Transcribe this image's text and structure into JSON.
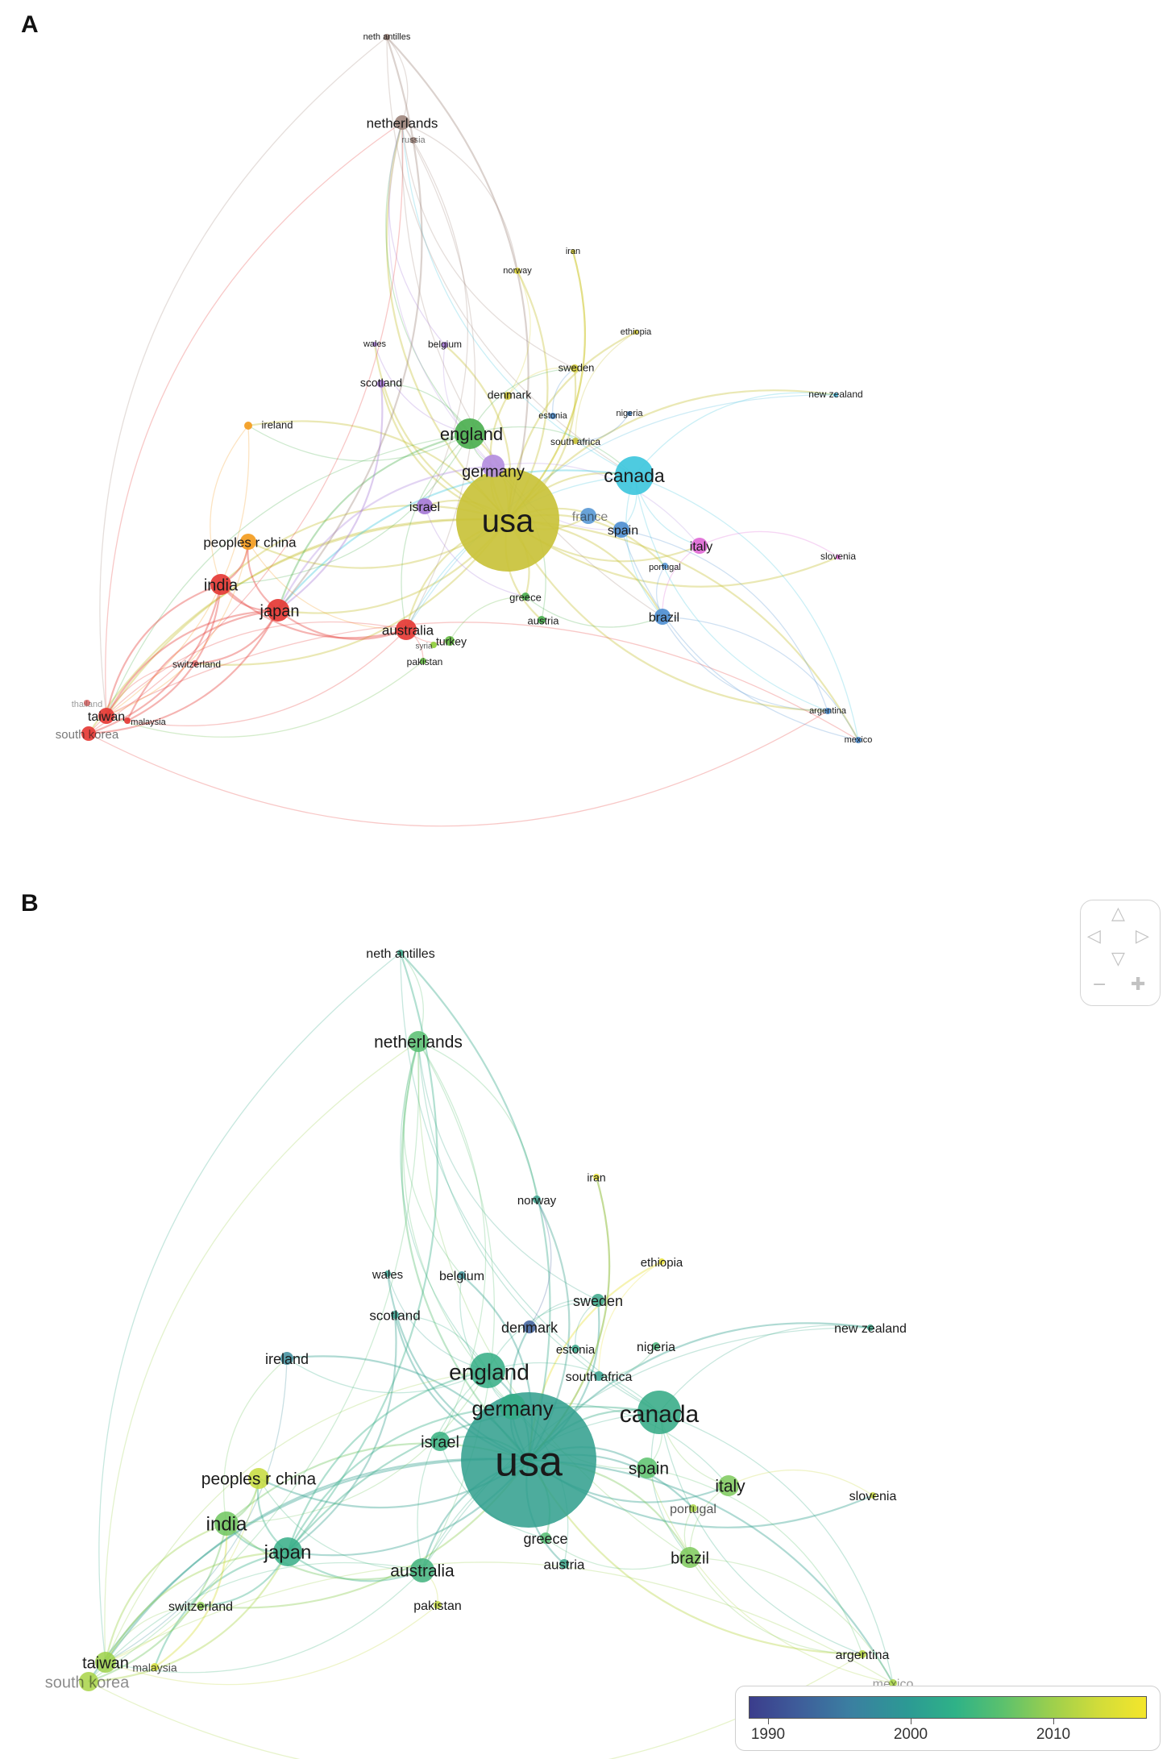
{
  "panels": [
    {
      "letter": "A",
      "nodes": [
        {
          "label": "usa",
          "color": "#c9c23a"
        },
        {
          "label": "canada",
          "color": "#3fc7dd"
        },
        {
          "label": "england",
          "color": "#4caf50"
        },
        {
          "label": "germany",
          "color": "#b48ee0"
        },
        {
          "label": "israel",
          "color": "#a67ad6"
        },
        {
          "label": "france",
          "color": "#5b9ad6"
        },
        {
          "label": "spain",
          "color": "#4f8fd1"
        },
        {
          "label": "italy",
          "color": "#e06ad6"
        },
        {
          "label": "portugal",
          "color": "#5b9ad6"
        },
        {
          "label": "brazil",
          "color": "#4f8fd1"
        },
        {
          "label": "greece",
          "color": "#4caf50"
        },
        {
          "label": "austria",
          "color": "#4caf50"
        },
        {
          "label": "turkey",
          "color": "#66bb44"
        },
        {
          "label": "syria",
          "color": "#8fce3b"
        },
        {
          "label": "pakistan",
          "color": "#66bb44"
        },
        {
          "label": "australia",
          "color": "#e53935"
        },
        {
          "label": "japan",
          "color": "#e53935"
        },
        {
          "label": "india",
          "color": "#e53935"
        },
        {
          "label": "peoples r china",
          "color": "#f39c1f"
        },
        {
          "label": "switzerland",
          "color": "#e57373"
        },
        {
          "label": "taiwan",
          "color": "#e53935"
        },
        {
          "label": "thailand",
          "color": "#e57373"
        },
        {
          "label": "malaysia",
          "color": "#e53935"
        },
        {
          "label": "south korea",
          "color": "#e53935"
        },
        {
          "label": "ireland",
          "color": "#f39c1f"
        },
        {
          "label": "scotland",
          "color": "#a67ad6"
        },
        {
          "label": "wales",
          "color": "#a67ad6"
        },
        {
          "label": "belgium",
          "color": "#a67ad6"
        },
        {
          "label": "denmark",
          "color": "#c9c23a"
        },
        {
          "label": "sweden",
          "color": "#d8cf3a"
        },
        {
          "label": "norway",
          "color": "#d8cf3a"
        },
        {
          "label": "iran",
          "color": "#d8cf3a"
        },
        {
          "label": "ethiopia",
          "color": "#c9c23a"
        },
        {
          "label": "estonia",
          "color": "#4f8fd1"
        },
        {
          "label": "nigeria",
          "color": "#4f8fd1"
        },
        {
          "label": "south africa",
          "color": "#c9c23a"
        },
        {
          "label": "new zealand",
          "color": "#4fb9dd"
        },
        {
          "label": "slovenia",
          "color": "#e06ad6"
        },
        {
          "label": "argentina",
          "color": "#4f8fd1"
        },
        {
          "label": "mexico",
          "color": "#4f8fd1"
        },
        {
          "label": "netherlands",
          "color": "#a1887f"
        },
        {
          "label": "russia",
          "color": "#a1887f"
        },
        {
          "label": "neth antilles",
          "color": "#a1887f"
        }
      ]
    },
    {
      "letter": "B",
      "nodes": [
        {
          "label": "usa",
          "color": "#2e9e8c"
        },
        {
          "label": "canada",
          "color": "#2fa882"
        },
        {
          "label": "england",
          "color": "#33ad84"
        },
        {
          "label": "germany",
          "color": "#35ad86"
        },
        {
          "label": "israel",
          "color": "#37b080"
        },
        {
          "label": "spain",
          "color": "#5ac26c"
        },
        {
          "label": "italy",
          "color": "#7cc95a"
        },
        {
          "label": "portugal",
          "color": "#a9d444"
        },
        {
          "label": "brazil",
          "color": "#7cc95a"
        },
        {
          "label": "greece",
          "color": "#55bd72"
        },
        {
          "label": "austria",
          "color": "#3aa68a"
        },
        {
          "label": "australia",
          "color": "#40b27c"
        },
        {
          "label": "pakistan",
          "color": "#c2d73c"
        },
        {
          "label": "japan",
          "color": "#35ad86"
        },
        {
          "label": "india",
          "color": "#6fc55e"
        },
        {
          "label": "peoples r china",
          "color": "#c6da3a"
        },
        {
          "label": "switzerland",
          "color": "#8ccd52"
        },
        {
          "label": "taiwan",
          "color": "#9cd14a"
        },
        {
          "label": "malaysia",
          "color": "#d6de38"
        },
        {
          "label": "south korea",
          "color": "#a8d446"
        },
        {
          "label": "ireland",
          "color": "#3d8d9c"
        },
        {
          "label": "scotland",
          "color": "#36a08e"
        },
        {
          "label": "wales",
          "color": "#36a08e"
        },
        {
          "label": "belgium",
          "color": "#3a8f98"
        },
        {
          "label": "denmark",
          "color": "#3d5f9c"
        },
        {
          "label": "sweden",
          "color": "#39a78a"
        },
        {
          "label": "norway",
          "color": "#3ba08c"
        },
        {
          "label": "iran",
          "color": "#e8e032"
        },
        {
          "label": "ethiopia",
          "color": "#e8e032"
        },
        {
          "label": "estonia",
          "color": "#37a88a"
        },
        {
          "label": "nigeria",
          "color": "#49b67a"
        },
        {
          "label": "south africa",
          "color": "#35a08e"
        },
        {
          "label": "new zealand",
          "color": "#39a88a"
        },
        {
          "label": "slovenia",
          "color": "#c8d83c"
        },
        {
          "label": "argentina",
          "color": "#b6d640"
        },
        {
          "label": "mexico",
          "color": "#a8d444"
        },
        {
          "label": "netherlands",
          "color": "#57be70"
        },
        {
          "label": "neth antilles",
          "color": "#34a88a"
        }
      ],
      "legend": {
        "ticks": [
          "1990",
          "2000",
          "2010"
        ],
        "colors": [
          "#3b3d8c",
          "#2c9a94",
          "#5cc16d",
          "#f4e62b"
        ]
      }
    }
  ],
  "navigation": {
    "up": "△",
    "left": "◁",
    "right": "▷",
    "down": "▽",
    "zoom_out": "−",
    "zoom_in": "✚"
  }
}
